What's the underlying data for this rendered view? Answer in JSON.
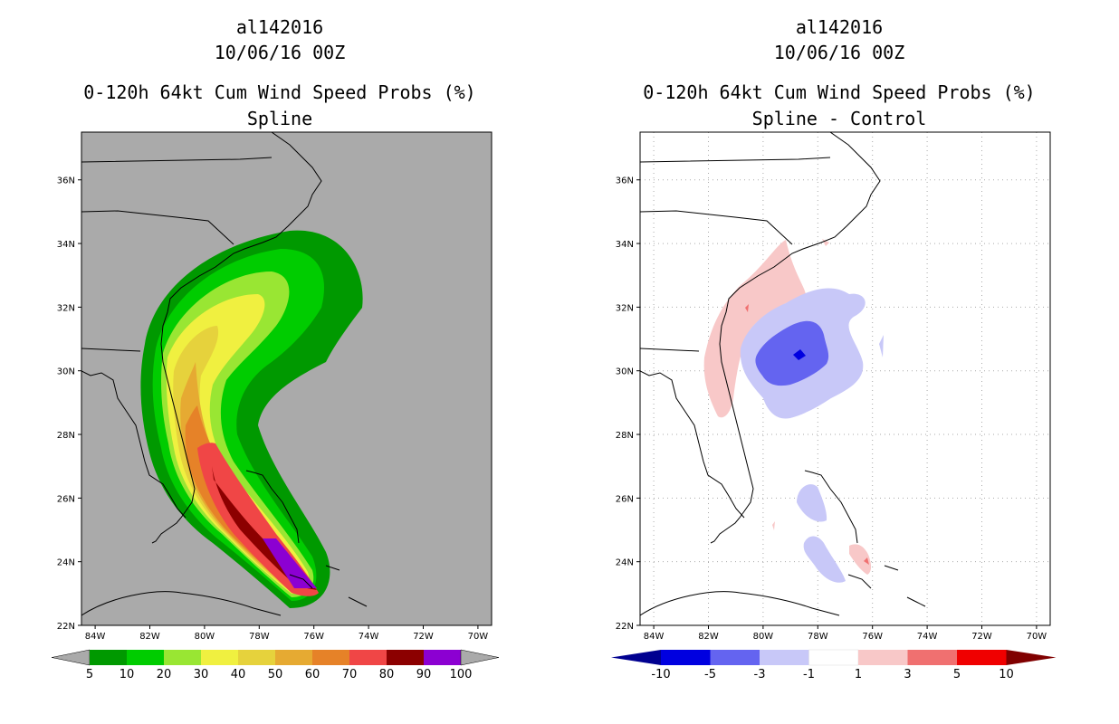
{
  "left": {
    "storm_id": "al142016",
    "date": "10/06/16 00Z",
    "title": "0-120h 64kt Cum Wind Speed Probs (%)",
    "subtitle": "Spline",
    "colorbar": {
      "labels": [
        "5",
        "10",
        "20",
        "30",
        "40",
        "50",
        "60",
        "70",
        "80",
        "90",
        "100"
      ],
      "colors": [
        "#009900",
        "#00cc00",
        "#99e633",
        "#f0f040",
        "#e6d23c",
        "#e6aa32",
        "#e68228",
        "#f04646",
        "#8c0000",
        "#8c00d2"
      ]
    }
  },
  "right": {
    "storm_id": "al142016",
    "date": "10/06/16 00Z",
    "title": "0-120h 64kt Cum Wind Speed Probs (%)",
    "subtitle": "Spline - Control",
    "colorbar": {
      "labels": [
        "-10",
        "-5",
        "-3",
        "-1",
        "1",
        "3",
        "5",
        "10"
      ],
      "colors": [
        "#0000e0",
        "#6464f0",
        "#c8c8f8",
        "#ffffff",
        "#f8c8c8",
        "#f07070",
        "#f00000"
      ],
      "low_color": "#000090",
      "high_color": "#800000"
    }
  },
  "axes": {
    "lon_labels": [
      "84W",
      "82W",
      "80W",
      "78W",
      "76W",
      "74W",
      "72W",
      "70W"
    ],
    "lat_labels": [
      "22N",
      "24N",
      "26N",
      "28N",
      "30N",
      "32N",
      "34N",
      "36N"
    ],
    "lon_range": [
      -84.5,
      -69.5
    ],
    "lat_range": [
      22,
      37.5
    ]
  },
  "colors": {
    "land_bg_left": "#aaaaaa",
    "frame": "#000000",
    "coast": "#000000"
  }
}
